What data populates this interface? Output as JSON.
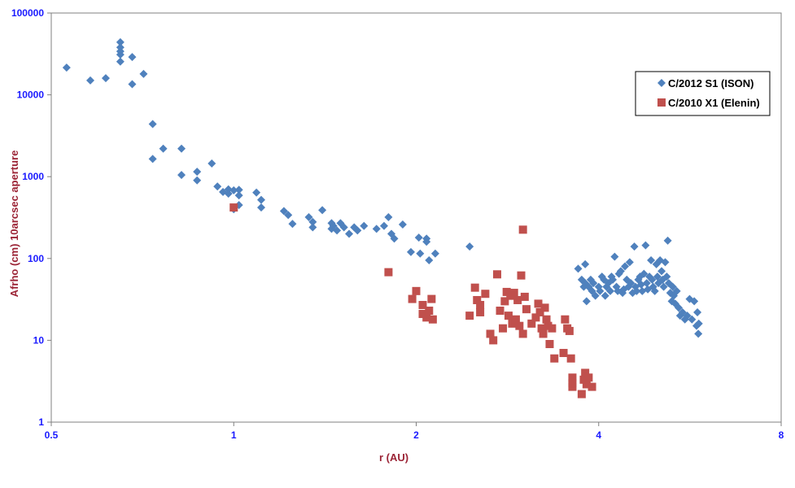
{
  "chart_data": {
    "type": "scatter",
    "xlabel": "r (AU)",
    "ylabel": "Afrho (cm) 10arcsec aperture",
    "x_scale": "log2",
    "y_scale": "log10",
    "xlim": [
      0.5,
      8
    ],
    "ylim": [
      1,
      100000
    ],
    "x_ticks": [
      "0.5",
      "1",
      "2",
      "4",
      "8"
    ],
    "y_ticks": [
      "1",
      "10",
      "100",
      "1000",
      "10000",
      "100000"
    ],
    "grid": false,
    "legend_position": "right",
    "series": [
      {
        "name": "C/2012 S1 (ISON)",
        "marker": "diamond",
        "color": "#4f81bd",
        "points": [
          [
            0.53,
            21500
          ],
          [
            0.58,
            15000
          ],
          [
            0.615,
            16000
          ],
          [
            0.65,
            44000
          ],
          [
            0.65,
            38000
          ],
          [
            0.65,
            34000
          ],
          [
            0.65,
            31000
          ],
          [
            0.65,
            25500
          ],
          [
            0.68,
            29000
          ],
          [
            0.68,
            13500
          ],
          [
            0.71,
            18000
          ],
          [
            0.735,
            4400
          ],
          [
            0.735,
            1650
          ],
          [
            0.765,
            2200
          ],
          [
            0.82,
            2200
          ],
          [
            0.82,
            1050
          ],
          [
            0.87,
            1150
          ],
          [
            0.87,
            900
          ],
          [
            0.92,
            1450
          ],
          [
            0.94,
            760
          ],
          [
            0.96,
            650
          ],
          [
            0.98,
            700
          ],
          [
            0.98,
            620
          ],
          [
            1.0,
            680
          ],
          [
            1.0,
            400
          ],
          [
            1.02,
            690
          ],
          [
            1.02,
            590
          ],
          [
            1.02,
            450
          ],
          [
            1.09,
            640
          ],
          [
            1.11,
            520
          ],
          [
            1.11,
            420
          ],
          [
            1.21,
            380
          ],
          [
            1.23,
            340
          ],
          [
            1.25,
            265
          ],
          [
            1.33,
            320
          ],
          [
            1.35,
            280
          ],
          [
            1.35,
            240
          ],
          [
            1.4,
            390
          ],
          [
            1.45,
            270
          ],
          [
            1.45,
            230
          ],
          [
            1.46,
            250
          ],
          [
            1.48,
            220
          ],
          [
            1.5,
            270
          ],
          [
            1.52,
            240
          ],
          [
            1.55,
            200
          ],
          [
            1.58,
            240
          ],
          [
            1.6,
            220
          ],
          [
            1.64,
            250
          ],
          [
            1.72,
            230
          ],
          [
            1.77,
            250
          ],
          [
            1.8,
            320
          ],
          [
            1.82,
            200
          ],
          [
            1.84,
            175
          ],
          [
            1.9,
            260
          ],
          [
            1.96,
            120
          ],
          [
            2.02,
            180
          ],
          [
            2.03,
            115
          ],
          [
            2.08,
            175
          ],
          [
            2.08,
            160
          ],
          [
            2.1,
            95
          ],
          [
            2.15,
            115
          ],
          [
            2.45,
            140
          ],
          [
            3.7,
            75
          ],
          [
            3.8,
            85
          ],
          [
            3.75,
            55
          ],
          [
            3.78,
            45
          ],
          [
            3.8,
            50
          ],
          [
            3.82,
            30
          ],
          [
            3.85,
            45
          ],
          [
            3.88,
            55
          ],
          [
            3.9,
            40
          ],
          [
            3.92,
            50
          ],
          [
            3.95,
            35
          ],
          [
            4.0,
            45
          ],
          [
            4.02,
            40
          ],
          [
            4.05,
            60
          ],
          [
            4.08,
            55
          ],
          [
            4.1,
            35
          ],
          [
            4.12,
            45
          ],
          [
            4.15,
            50
          ],
          [
            4.18,
            40
          ],
          [
            4.2,
            60
          ],
          [
            4.22,
            55
          ],
          [
            4.25,
            105
          ],
          [
            4.28,
            45
          ],
          [
            4.3,
            40
          ],
          [
            4.32,
            65
          ],
          [
            4.35,
            70
          ],
          [
            4.38,
            38
          ],
          [
            4.4,
            42
          ],
          [
            4.42,
            80
          ],
          [
            4.45,
            55
          ],
          [
            4.48,
            45
          ],
          [
            4.5,
            90
          ],
          [
            4.52,
            50
          ],
          [
            4.55,
            38
          ],
          [
            4.58,
            140
          ],
          [
            4.6,
            45
          ],
          [
            4.62,
            40
          ],
          [
            4.65,
            55
          ],
          [
            4.68,
            60
          ],
          [
            4.7,
            48
          ],
          [
            4.72,
            40
          ],
          [
            4.75,
            65
          ],
          [
            4.78,
            145
          ],
          [
            4.8,
            50
          ],
          [
            4.82,
            42
          ],
          [
            4.85,
            60
          ],
          [
            4.88,
            95
          ],
          [
            4.9,
            55
          ],
          [
            4.92,
            45
          ],
          [
            4.95,
            40
          ],
          [
            4.98,
            85
          ],
          [
            5.0,
            60
          ],
          [
            5.02,
            50
          ],
          [
            5.05,
            95
          ],
          [
            5.08,
            70
          ],
          [
            5.1,
            55
          ],
          [
            5.12,
            45
          ],
          [
            5.15,
            90
          ],
          [
            5.18,
            60
          ],
          [
            5.2,
            165
          ],
          [
            5.22,
            50
          ],
          [
            5.25,
            38
          ],
          [
            5.28,
            30
          ],
          [
            5.3,
            45
          ],
          [
            5.32,
            35
          ],
          [
            5.35,
            28
          ],
          [
            5.38,
            40
          ],
          [
            5.42,
            25
          ],
          [
            5.45,
            20
          ],
          [
            5.5,
            22
          ],
          [
            5.55,
            18
          ],
          [
            5.6,
            20
          ],
          [
            5.65,
            32
          ],
          [
            5.7,
            18
          ],
          [
            5.75,
            30
          ],
          [
            5.8,
            15
          ],
          [
            5.82,
            22
          ],
          [
            5.84,
            12
          ],
          [
            5.85,
            16
          ]
        ]
      },
      {
        "name": "C/2010 X1 (Elenin)",
        "marker": "square",
        "color": "#c0504d",
        "points": [
          [
            1.0,
            420
          ],
          [
            1.8,
            68
          ],
          [
            1.97,
            32
          ],
          [
            2.0,
            40
          ],
          [
            2.05,
            27
          ],
          [
            2.05,
            21
          ],
          [
            2.08,
            19
          ],
          [
            2.1,
            23
          ],
          [
            2.12,
            32
          ],
          [
            2.13,
            18
          ],
          [
            2.45,
            20
          ],
          [
            2.5,
            44
          ],
          [
            2.52,
            31
          ],
          [
            2.55,
            27
          ],
          [
            2.55,
            22
          ],
          [
            2.6,
            37
          ],
          [
            2.65,
            12
          ],
          [
            2.68,
            10
          ],
          [
            2.72,
            64
          ],
          [
            2.75,
            23
          ],
          [
            2.78,
            14
          ],
          [
            2.8,
            30
          ],
          [
            2.82,
            39
          ],
          [
            2.84,
            20
          ],
          [
            2.86,
            35
          ],
          [
            2.88,
            16
          ],
          [
            2.9,
            38
          ],
          [
            2.92,
            18
          ],
          [
            2.94,
            31
          ],
          [
            2.96,
            15
          ],
          [
            2.98,
            62
          ],
          [
            3.0,
            12
          ],
          [
            3.0,
            225
          ],
          [
            3.02,
            34
          ],
          [
            3.04,
            24
          ],
          [
            3.1,
            16
          ],
          [
            3.15,
            19
          ],
          [
            3.18,
            28
          ],
          [
            3.2,
            22
          ],
          [
            3.22,
            14
          ],
          [
            3.24,
            12
          ],
          [
            3.26,
            25
          ],
          [
            3.28,
            18
          ],
          [
            3.3,
            15
          ],
          [
            3.32,
            9
          ],
          [
            3.35,
            14
          ],
          [
            3.38,
            6
          ],
          [
            3.5,
            7
          ],
          [
            3.52,
            18
          ],
          [
            3.55,
            14
          ],
          [
            3.58,
            13
          ],
          [
            3.6,
            6
          ],
          [
            3.62,
            3.5
          ],
          [
            3.62,
            3
          ],
          [
            3.62,
            2.7
          ],
          [
            3.75,
            2.2
          ],
          [
            3.78,
            3.3
          ],
          [
            3.8,
            4
          ],
          [
            3.82,
            2.9
          ],
          [
            3.85,
            3.5
          ],
          [
            3.9,
            2.7
          ]
        ]
      }
    ]
  }
}
